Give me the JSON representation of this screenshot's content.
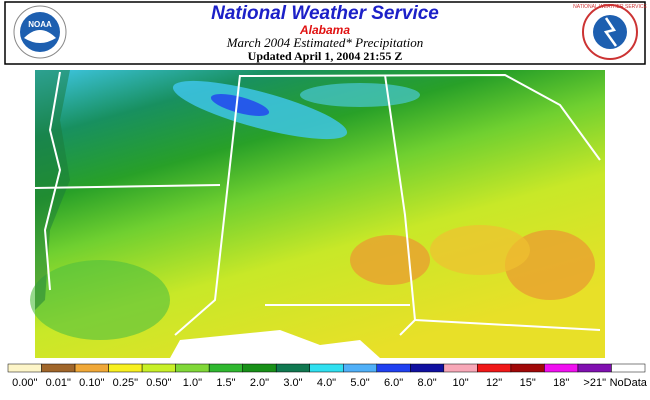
{
  "header": {
    "title": "National Weather Service",
    "region": "Alabama",
    "product": "March 2004 Estimated* Precipitation",
    "updated": "Updated April 1, 2004 21:55 Z"
  },
  "logos": {
    "left": "NOAA",
    "right": "NATIONAL WEATHER SERVICE"
  },
  "legend": [
    {
      "label": "0.00\"",
      "color": "#fdf5c8"
    },
    {
      "label": "0.01\"",
      "color": "#a0662a"
    },
    {
      "label": "0.10\"",
      "color": "#f0a838"
    },
    {
      "label": "0.25\"",
      "color": "#f8f020"
    },
    {
      "label": "0.50\"",
      "color": "#c8f028"
    },
    {
      "label": "1.0\"",
      "color": "#80d838"
    },
    {
      "label": "1.5\"",
      "color": "#30b830"
    },
    {
      "label": "2.0\"",
      "color": "#189018"
    },
    {
      "label": "3.0\"",
      "color": "#107850"
    },
    {
      "label": "4.0\"",
      "color": "#30e0f0"
    },
    {
      "label": "5.0\"",
      "color": "#50b0f8"
    },
    {
      "label": "6.0\"",
      "color": "#2040f0"
    },
    {
      "label": "8.0\"",
      "color": "#1010a0"
    },
    {
      "label": "10\"",
      "color": "#f8a8b8"
    },
    {
      "label": "12\"",
      "color": "#f01818"
    },
    {
      "label": "15\"",
      "color": "#a00808"
    },
    {
      "label": "18\"",
      "color": "#f010f0"
    },
    {
      "label": ">21\"",
      "color": "#8010b0"
    },
    {
      "label": "NoData",
      "color": "#ffffff"
    }
  ]
}
